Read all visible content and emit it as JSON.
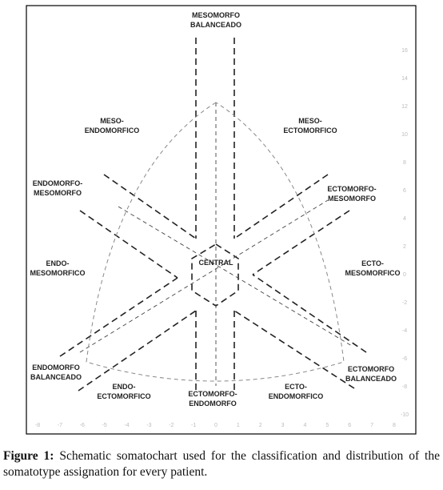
{
  "figure": {
    "regions": [
      [
        "MESOMORFO",
        "BALANCEADO"
      ],
      [
        "MESO-",
        "ENDOMORFICO"
      ],
      [
        "MESO-",
        "ECTOMORFICO"
      ],
      [
        "ENDOMORFO-",
        "MESOMORFO"
      ],
      [
        "ECTOMORFO-",
        "MESOMORFO"
      ],
      [
        "ENDO-",
        "MESOMORFICO"
      ],
      [
        "CENTRAL"
      ],
      [
        "ECTO-",
        "MESOMORFICO"
      ],
      [
        "ENDOMORFO",
        "BALANCEADO"
      ],
      [
        "ECTOMORFO",
        "BALANCEADO"
      ],
      [
        "ENDO-",
        "ECTOMORFICO"
      ],
      [
        "ECTOMORFO-",
        "ENDOMORFO"
      ],
      [
        "ECTO-",
        "ENDOMORFICO"
      ]
    ],
    "x_ticks": [
      -8,
      -7,
      -6,
      -5,
      -4,
      -3,
      -2,
      -1,
      0,
      1,
      2,
      3,
      4,
      5,
      6,
      7,
      8
    ],
    "y_ticks": [
      16,
      14,
      12,
      10,
      8,
      6,
      4,
      2,
      0,
      -2,
      -4,
      -6,
      -8,
      -10
    ]
  },
  "caption": {
    "label": "Figure 1:",
    "text": "Schematic somatochart used for the classification and distribution of the somatotype assignation for every patient."
  }
}
